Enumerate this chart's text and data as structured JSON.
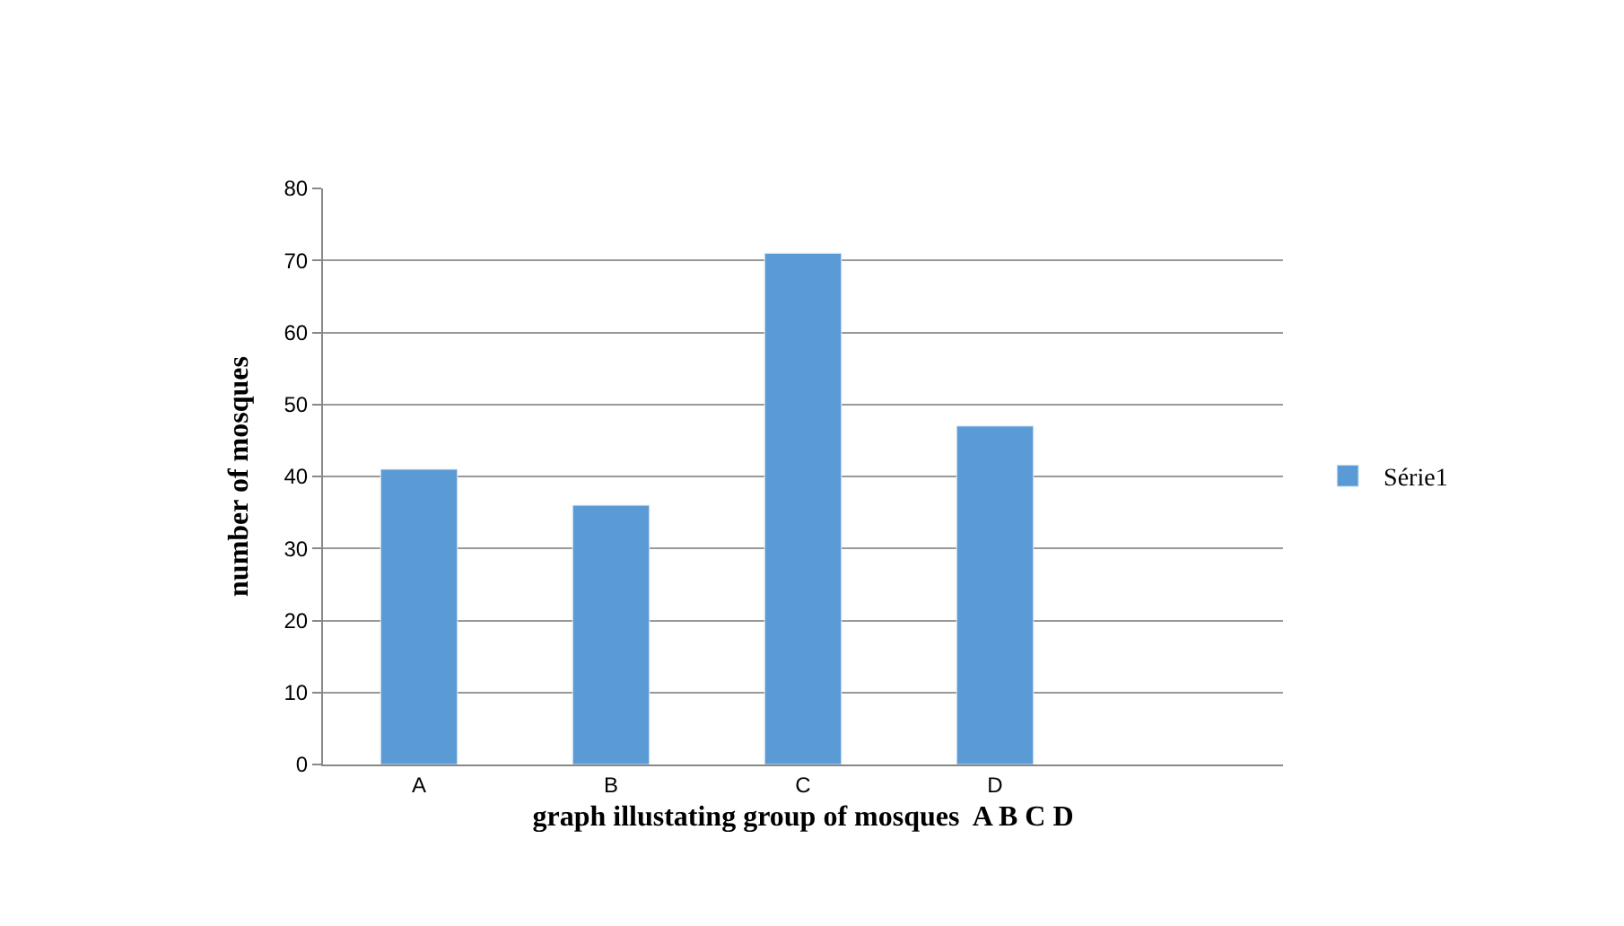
{
  "chart_data": {
    "type": "bar",
    "xlabel": "graph illustating group of mosques  A B C D",
    "ylabel": "number of mosques",
    "categories": [
      "A",
      "B",
      "C",
      "D",
      null
    ],
    "series": [
      {
        "name": "Série1",
        "color": "#5b9bd5",
        "values": [
          41,
          36,
          71,
          47,
          null
        ]
      }
    ],
    "ylim": [
      0,
      80
    ],
    "yticks": [
      0,
      10,
      20,
      30,
      40,
      50,
      60,
      70,
      80
    ],
    "grid": "y",
    "legend": "right"
  }
}
